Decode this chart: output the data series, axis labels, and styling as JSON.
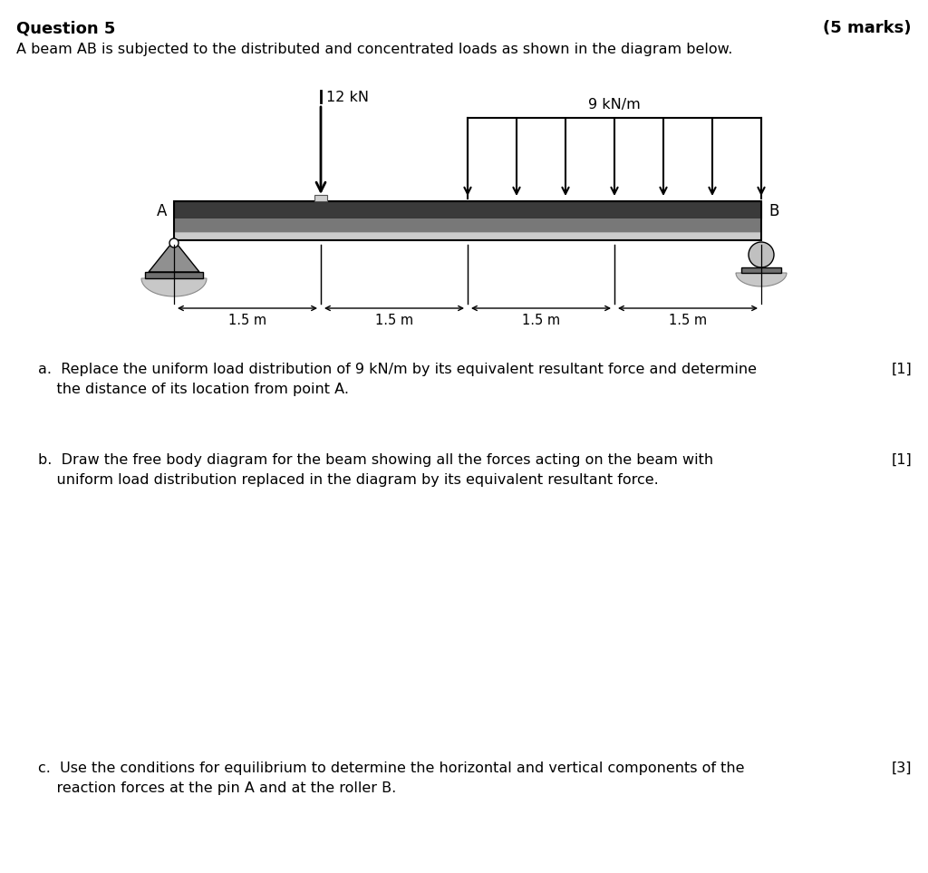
{
  "title_left": "Question 5",
  "title_right": "(5 marks)",
  "subtitle": "A beam AB is subjected to the distributed and concentrated loads as shown in the diagram below.",
  "beam_label_A": "A",
  "beam_label_B": "B",
  "load_conc_label": "12 kN",
  "load_dist_label": "9 kN/m",
  "dim_labels": [
    "1.5 m",
    "1.5 m",
    "1.5 m",
    "1.5 m"
  ],
  "qa_line1": "a.  Replace the uniform load distribution of 9 kN/m by its equivalent resultant force and determine",
  "qa_line2": "    the distance of its location from point A.",
  "qa_marks": "[1]",
  "qb_line1": "b.  Draw the free body diagram for the beam showing all the forces acting on the beam with",
  "qb_line2": "    uniform load distribution replaced in the diagram by its equivalent resultant force.",
  "qb_marks": "[1]",
  "qc_line1": "c.  Use the conditions for equilibrium to determine the horizontal and vertical components of the",
  "qc_line2": "    reaction forces at the pin A and at the roller B.",
  "qc_marks": "[3]",
  "bg_color": "#ffffff"
}
